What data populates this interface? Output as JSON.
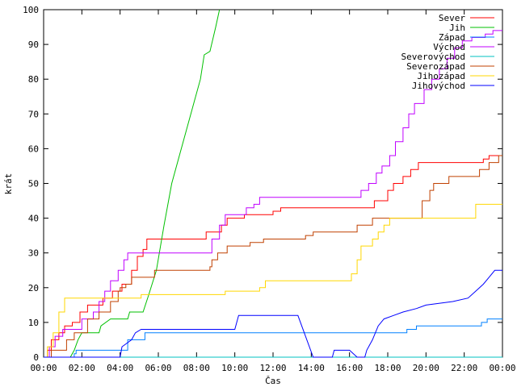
{
  "chart_data": {
    "type": "line",
    "title": "",
    "xlabel": "Čas",
    "ylabel": "krát",
    "xlim": [
      0,
      24
    ],
    "ylim": [
      0,
      100
    ],
    "x_ticks": [
      0,
      2,
      4,
      6,
      8,
      10,
      12,
      14,
      16,
      18,
      20,
      22,
      24
    ],
    "x_tick_labels": [
      "00:00",
      "02:00",
      "04:00",
      "06:00",
      "08:00",
      "10:00",
      "12:00",
      "14:00",
      "16:00",
      "18:00",
      "20:00",
      "22:00",
      "00:00"
    ],
    "y_ticks": [
      0,
      10,
      20,
      30,
      40,
      50,
      60,
      70,
      80,
      90,
      100
    ],
    "grid": false,
    "legend_position": "top-right",
    "series": [
      {
        "name": "Sever",
        "color": "#ff0000",
        "step": true,
        "points": [
          [
            0,
            0
          ],
          [
            0.2,
            2
          ],
          [
            0.4,
            5
          ],
          [
            0.8,
            7
          ],
          [
            1.1,
            9
          ],
          [
            1.5,
            10
          ],
          [
            1.9,
            13
          ],
          [
            2.3,
            15
          ],
          [
            3.1,
            17
          ],
          [
            3.6,
            19
          ],
          [
            4.1,
            21
          ],
          [
            4.6,
            25
          ],
          [
            4.9,
            29
          ],
          [
            5.2,
            31
          ],
          [
            5.4,
            34
          ],
          [
            8.5,
            36
          ],
          [
            9.3,
            38
          ],
          [
            9.6,
            40
          ],
          [
            10.5,
            41
          ],
          [
            12,
            42
          ],
          [
            12.4,
            43
          ],
          [
            17.3,
            45
          ],
          [
            18,
            48
          ],
          [
            18.3,
            50
          ],
          [
            18.8,
            52
          ],
          [
            19.2,
            54
          ],
          [
            19.6,
            56
          ],
          [
            23,
            57
          ],
          [
            23.3,
            58
          ],
          [
            24,
            58
          ]
        ]
      },
      {
        "name": "Jih",
        "color": "#00c000",
        "step": false,
        "points": [
          [
            0,
            0
          ],
          [
            1.4,
            0
          ],
          [
            1.6,
            2
          ],
          [
            1.8,
            5
          ],
          [
            2.0,
            7
          ],
          [
            2.9,
            7
          ],
          [
            3.0,
            9
          ],
          [
            3.5,
            11
          ],
          [
            4.4,
            11
          ],
          [
            4.5,
            13
          ],
          [
            5.2,
            13
          ],
          [
            5.5,
            18
          ],
          [
            5.9,
            25
          ],
          [
            6.3,
            38
          ],
          [
            6.7,
            50
          ],
          [
            7.3,
            62
          ],
          [
            7.8,
            72
          ],
          [
            8.2,
            80
          ],
          [
            8.4,
            87
          ],
          [
            8.7,
            88
          ],
          [
            9.0,
            95
          ],
          [
            9.2,
            100
          ]
        ]
      },
      {
        "name": "Západ",
        "color": "#0080ff",
        "step": true,
        "points": [
          [
            0,
            0
          ],
          [
            1.5,
            0
          ],
          [
            1.6,
            1
          ],
          [
            1.7,
            2
          ],
          [
            4.0,
            2
          ],
          [
            4.4,
            5
          ],
          [
            5.3,
            7
          ],
          [
            10.0,
            7
          ],
          [
            19.0,
            8
          ],
          [
            19.5,
            9
          ],
          [
            22.9,
            10
          ],
          [
            23.2,
            11
          ],
          [
            24,
            11
          ]
        ]
      },
      {
        "name": "Východ",
        "color": "#c000ff",
        "step": true,
        "points": [
          [
            0,
            0
          ],
          [
            0.3,
            3
          ],
          [
            0.6,
            6
          ],
          [
            1.0,
            8
          ],
          [
            2.0,
            11
          ],
          [
            2.6,
            13
          ],
          [
            2.9,
            16
          ],
          [
            3.2,
            19
          ],
          [
            3.5,
            22
          ],
          [
            3.9,
            25
          ],
          [
            4.2,
            28
          ],
          [
            4.4,
            30
          ],
          [
            8.8,
            34
          ],
          [
            9.2,
            38
          ],
          [
            9.5,
            41
          ],
          [
            10.6,
            43
          ],
          [
            11.0,
            44
          ],
          [
            11.3,
            46
          ],
          [
            16.6,
            48
          ],
          [
            17.0,
            50
          ],
          [
            17.4,
            53
          ],
          [
            17.7,
            55
          ],
          [
            18.1,
            58
          ],
          [
            18.4,
            62
          ],
          [
            18.8,
            66
          ],
          [
            19.1,
            70
          ],
          [
            19.4,
            73
          ],
          [
            19.9,
            77
          ],
          [
            20.3,
            80
          ],
          [
            20.7,
            83
          ],
          [
            21.1,
            86
          ],
          [
            21.5,
            89
          ],
          [
            21.9,
            91
          ],
          [
            22.4,
            92
          ],
          [
            23.1,
            93
          ],
          [
            23.5,
            94
          ],
          [
            24,
            94
          ]
        ]
      },
      {
        "name": "Severovýchod",
        "color": "#00c0c0",
        "step": true,
        "points": [
          [
            0,
            0
          ],
          [
            24,
            0
          ]
        ]
      },
      {
        "name": "Severozápad",
        "color": "#c04000",
        "step": true,
        "points": [
          [
            0,
            0
          ],
          [
            0.4,
            2
          ],
          [
            1.2,
            5
          ],
          [
            1.6,
            7
          ],
          [
            2.3,
            11
          ],
          [
            2.9,
            13
          ],
          [
            3.5,
            16
          ],
          [
            3.9,
            19
          ],
          [
            4.0,
            20
          ],
          [
            4.3,
            21
          ],
          [
            4.6,
            23
          ],
          [
            5.8,
            25
          ],
          [
            8.7,
            26
          ],
          [
            8.8,
            28
          ],
          [
            9.1,
            30
          ],
          [
            9.6,
            32
          ],
          [
            10.8,
            33
          ],
          [
            11.5,
            34
          ],
          [
            13.7,
            35
          ],
          [
            14.1,
            36
          ],
          [
            16.4,
            38
          ],
          [
            17.2,
            40
          ],
          [
            19.8,
            45
          ],
          [
            20.2,
            48
          ],
          [
            20.4,
            50
          ],
          [
            21.2,
            52
          ],
          [
            22.8,
            54
          ],
          [
            23.3,
            56
          ],
          [
            23.8,
            58
          ],
          [
            24,
            58
          ]
        ]
      },
      {
        "name": "Jihozápad",
        "color": "#ffd700",
        "step": true,
        "points": [
          [
            0,
            0
          ],
          [
            0.2,
            3
          ],
          [
            0.5,
            7
          ],
          [
            0.8,
            13
          ],
          [
            1.1,
            17
          ],
          [
            5.1,
            18
          ],
          [
            9.5,
            19
          ],
          [
            11.3,
            20
          ],
          [
            11.6,
            22
          ],
          [
            16.1,
            24
          ],
          [
            16.4,
            28
          ],
          [
            16.6,
            32
          ],
          [
            17.2,
            34
          ],
          [
            17.5,
            36
          ],
          [
            17.8,
            38
          ],
          [
            18.1,
            40
          ],
          [
            22.6,
            44
          ],
          [
            24,
            44
          ]
        ]
      },
      {
        "name": "Jihovýchod",
        "color": "#0000ff",
        "step": false,
        "points": [
          [
            0,
            0
          ],
          [
            4.0,
            0
          ],
          [
            4.1,
            3
          ],
          [
            4.6,
            5
          ],
          [
            4.8,
            7
          ],
          [
            5.1,
            8
          ],
          [
            10.0,
            8
          ],
          [
            10.2,
            12
          ],
          [
            13.3,
            12
          ],
          [
            14.1,
            0
          ],
          [
            15.1,
            0
          ],
          [
            15.2,
            2
          ],
          [
            16.0,
            2
          ],
          [
            16.4,
            0
          ],
          [
            16.8,
            0
          ],
          [
            16.9,
            2
          ],
          [
            17.2,
            5
          ],
          [
            17.5,
            9
          ],
          [
            17.8,
            11
          ],
          [
            18.3,
            12
          ],
          [
            18.8,
            13
          ],
          [
            19.5,
            14
          ],
          [
            20.0,
            15
          ],
          [
            21.4,
            16
          ],
          [
            22.2,
            17
          ],
          [
            22.6,
            19
          ],
          [
            23.0,
            21
          ],
          [
            23.3,
            23
          ],
          [
            23.6,
            25
          ],
          [
            24,
            25
          ]
        ]
      }
    ]
  }
}
